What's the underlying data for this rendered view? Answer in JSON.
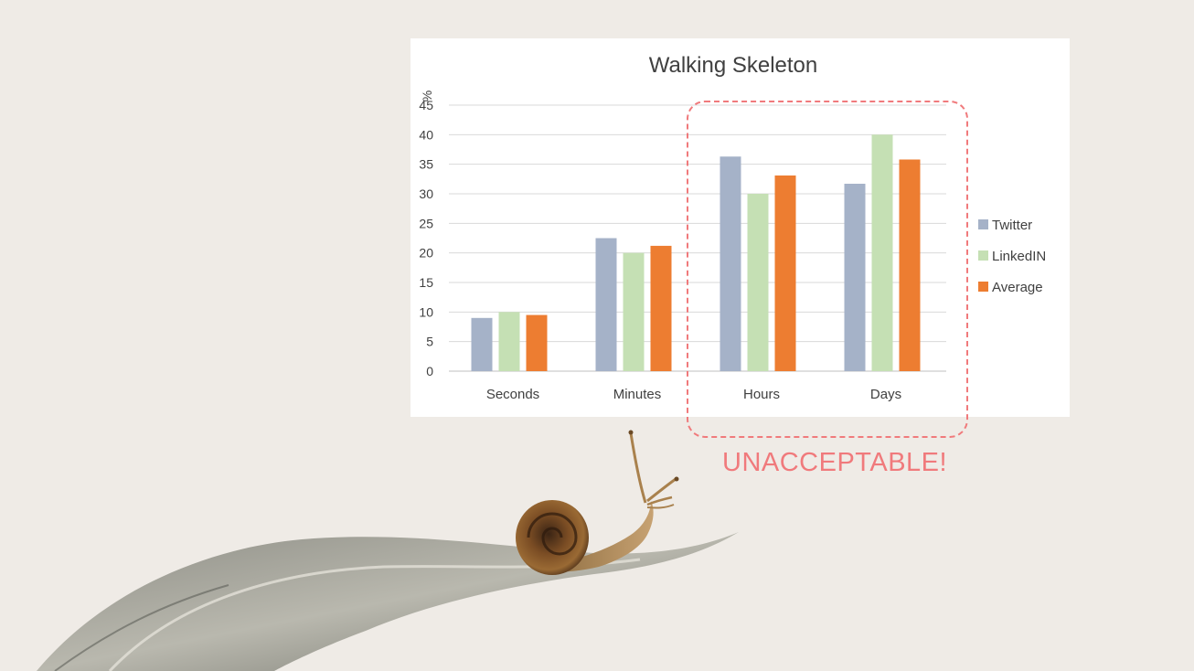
{
  "annotation": {
    "text": "UNACCEPTABLE!",
    "color": "#f07a7c"
  },
  "chart_data": {
    "type": "bar",
    "title": "Walking Skeleton",
    "ylabel": "%",
    "xlabel": "",
    "ylim": [
      0,
      45
    ],
    "yticks": [
      0,
      5,
      10,
      15,
      20,
      25,
      30,
      35,
      40,
      45
    ],
    "grid": true,
    "legend_position": "right",
    "categories": [
      "Seconds",
      "Minutes",
      "Hours",
      "Days"
    ],
    "series": [
      {
        "name": "Twitter",
        "color": "#a5b2c8",
        "values": [
          9,
          22.5,
          36.3,
          31.7
        ]
      },
      {
        "name": "LinkedIN",
        "color": "#c5e0b4",
        "values": [
          10,
          20,
          30,
          40
        ]
      },
      {
        "name": "Average",
        "color": "#ed7d31",
        "values": [
          9.5,
          21.2,
          33.1,
          35.8
        ]
      }
    ]
  }
}
